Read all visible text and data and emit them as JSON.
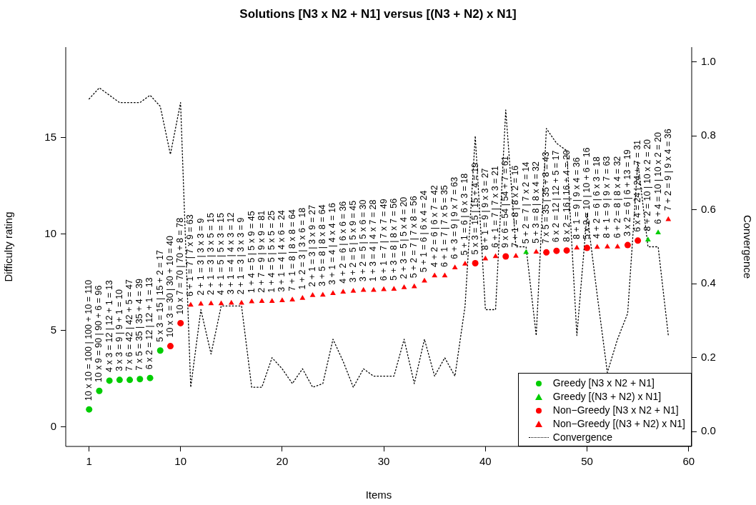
{
  "chart_data": {
    "type": "scatter",
    "title": "Solutions [N3 x N2 + N1] versus [(N3 + N2) x N1]",
    "xlabel": "Items",
    "ylabel": "Difficulty rating",
    "y2label": "Convergence",
    "x": [
      1,
      2,
      3,
      4,
      5,
      6,
      7,
      8,
      9,
      10,
      11,
      12,
      13,
      14,
      15,
      16,
      17,
      18,
      19,
      20,
      21,
      22,
      23,
      24,
      25,
      26,
      27,
      28,
      29,
      30,
      31,
      32,
      33,
      34,
      35,
      36,
      37,
      38,
      39,
      40,
      41,
      42,
      43,
      44,
      45,
      46,
      47,
      48,
      49,
      50,
      51,
      52,
      53,
      54,
      55,
      56,
      57,
      58
    ],
    "series": [
      {
        "name": "Greedy [N3 x N2 + N1]",
        "color": "#00cd00",
        "marker": "circle",
        "x": [
          1,
          2,
          3,
          4,
          5,
          6,
          7,
          8
        ],
        "values": [
          0.92,
          1.88,
          2.41,
          2.45,
          2.45,
          2.49,
          2.55,
          3.97
        ]
      },
      {
        "name": "Greedy [(N3 + N2) x N1]",
        "color": "#00cd00",
        "marker": "triangle",
        "x": [
          44,
          56,
          57
        ],
        "values": [
          9.06,
          9.71,
          10.08
        ]
      },
      {
        "name": "Non−Greedy [N3 x N2 + N1]",
        "color": "#ff0000",
        "marker": "circle",
        "x": [
          9,
          10,
          39,
          42,
          46,
          47,
          48,
          50,
          54,
          55
        ],
        "values": [
          4.2,
          5.39,
          8.5,
          8.85,
          9.06,
          9.14,
          9.16,
          9.29,
          9.44,
          9.67
        ]
      },
      {
        "name": "Non−Greedy [(N3 + N2) x N1]",
        "color": "#ff0000",
        "marker": "triangle",
        "x": [
          11,
          12,
          13,
          14,
          15,
          16,
          17,
          18,
          19,
          20,
          21,
          22,
          23,
          24,
          25,
          26,
          27,
          28,
          29,
          30,
          31,
          32,
          33,
          34,
          35,
          36,
          37,
          38,
          40,
          41,
          43,
          45,
          49,
          51,
          52,
          53,
          58
        ],
        "values": [
          6.33,
          6.39,
          6.41,
          6.41,
          6.43,
          6.43,
          6.51,
          6.53,
          6.53,
          6.56,
          6.6,
          6.68,
          6.83,
          6.85,
          6.93,
          7.01,
          7.05,
          7.1,
          7.1,
          7.14,
          7.16,
          7.24,
          7.29,
          7.58,
          7.85,
          7.85,
          8.27,
          8.46,
          8.73,
          8.85,
          8.87,
          9.08,
          9.29,
          9.33,
          9.35,
          9.35,
          10.77
        ]
      },
      {
        "name": "Convergence",
        "type": "line",
        "axis": "y2",
        "color": "#000000",
        "marker": "none",
        "line_style": "dotted",
        "values": [
          0.9,
          0.93,
          0.91,
          0.89,
          0.89,
          0.89,
          0.91,
          0.88,
          0.75,
          0.89,
          0.12,
          0.33,
          0.21,
          0.34,
          0.34,
          0.34,
          0.12,
          0.12,
          0.2,
          0.17,
          0.13,
          0.17,
          0.12,
          0.13,
          0.25,
          0.19,
          0.12,
          0.17,
          0.15,
          0.15,
          0.15,
          0.25,
          0.13,
          0.25,
          0.15,
          0.2,
          0.15,
          0.34,
          0.8,
          0.33,
          0.33,
          0.87,
          0.5,
          0.5,
          0.26,
          0.82,
          0.78,
          0.76,
          0.26,
          0.59,
          0.37,
          0.16,
          0.25,
          0.32,
          0.73,
          0.5,
          0.5,
          0.26
        ]
      }
    ],
    "xlim": [
      -1.3,
      60.3
    ],
    "xticks": [
      1,
      10,
      20,
      30,
      40,
      50,
      60
    ],
    "ylim": [
      -1,
      19.7
    ],
    "yticks": [
      0,
      5,
      10,
      15
    ],
    "y2lim": [
      -0.04,
      1.04
    ],
    "y2ticks": [
      {
        "value": 0,
        "label": "0.0"
      },
      {
        "value": 0.2,
        "label": "0.2"
      },
      {
        "value": 0.4,
        "label": "0.4"
      },
      {
        "value": 0.6,
        "label": "0.6"
      },
      {
        "value": 0.8,
        "label": "0.8"
      },
      {
        "value": 1,
        "label": "1.0"
      }
    ],
    "grid": false,
    "legend": "bottom right",
    "annotations": [
      {
        "text": "10 x 10 = 100 | 100 + 10 = 110",
        "x": 1,
        "y": 0.92
      },
      {
        "text": "10 x 9 = 90 | 90 + 6 = 96",
        "x": 2,
        "y": 1.88
      },
      {
        "text": "4 x 3 = 12 | 12 + 1 = 13",
        "x": 3,
        "y": 2.41
      },
      {
        "text": "3 x 3 = 9 | 9 + 1 = 10",
        "x": 4,
        "y": 2.45
      },
      {
        "text": "7 x 6 = 42 | 42 + 5 = 47",
        "x": 5,
        "y": 2.45
      },
      {
        "text": "7 x 5 = 35 | 35 + 4 = 39",
        "x": 6,
        "y": 2.49
      },
      {
        "text": "6 x 2 = 12 | 12 + 1 = 13",
        "x": 7,
        "y": 2.55
      },
      {
        "text": "5 x 3 = 15 | 15 + 2 = 17",
        "x": 8,
        "y": 3.97
      },
      {
        "text": "10 x 3 = 30 | 30 + 10 = 40",
        "x": 9,
        "y": 4.2
      },
      {
        "text": "10 x 7 = 70 | 70 + 8 = 78",
        "x": 10,
        "y": 5.39
      },
      {
        "text": "6 + 1 = 7 | 7 x 9 = 63",
        "x": 11,
        "y": 6.33
      },
      {
        "text": "2 + 1 = 3 | 3 x 3 = 9",
        "x": 12,
        "y": 6.39
      },
      {
        "text": "2 + 1 = 3 | 3 x 5 = 15",
        "x": 13,
        "y": 6.41
      },
      {
        "text": "4 + 1 = 5 | 5 x 3 = 15",
        "x": 14,
        "y": 6.41
      },
      {
        "text": "3 + 1 = 4 | 4 x 3 = 12",
        "x": 15,
        "y": 6.43
      },
      {
        "text": "2 + 1 = 3 | 3 x 3 = 9",
        "x": 16,
        "y": 6.43
      },
      {
        "text": "1 + 4 = 5 | 5 x 9 = 45",
        "x": 17,
        "y": 6.51
      },
      {
        "text": "2 + 7 = 9 | 9 x 9 = 81",
        "x": 18,
        "y": 6.53
      },
      {
        "text": "1 + 4 = 5 | 5 x 5 = 25",
        "x": 19,
        "y": 6.53
      },
      {
        "text": "3 + 1 = 4 | 4 x 6 = 24",
        "x": 20,
        "y": 6.56
      },
      {
        "text": "7 + 1 = 8 | 8 x 8 = 64",
        "x": 21,
        "y": 6.6
      },
      {
        "text": "1 + 2 = 3 | 3 x 6 = 18",
        "x": 22,
        "y": 6.68
      },
      {
        "text": "2 + 1 = 3 | 3 x 9 = 27",
        "x": 23,
        "y": 6.83
      },
      {
        "text": "3 + 5 = 8 | 8 x 8 = 64",
        "x": 24,
        "y": 6.85
      },
      {
        "text": "3 + 1 = 4 | 4 x 4 = 16",
        "x": 25,
        "y": 6.93
      },
      {
        "text": "4 + 2 = 6 | 6 x 6 = 36",
        "x": 26,
        "y": 7.01
      },
      {
        "text": "3 + 2 = 5 | 5 x 9 = 45",
        "x": 27,
        "y": 7.05
      },
      {
        "text": "3 + 2 = 5 | 5 x 6 = 30",
        "x": 28,
        "y": 7.1
      },
      {
        "text": "1 + 3 = 4 | 4 x 7 = 28",
        "x": 29,
        "y": 7.1
      },
      {
        "text": "6 + 1 = 7 | 7 x 7 = 49",
        "x": 30,
        "y": 7.14
      },
      {
        "text": "5 + 3 = 8 | 8 x 7 = 56",
        "x": 31,
        "y": 7.16
      },
      {
        "text": "2 + 3 = 5 | 5 x 4 = 20",
        "x": 32,
        "y": 7.24
      },
      {
        "text": "5 + 2 = 7 | 7 x 8 = 56",
        "x": 33,
        "y": 7.29
      },
      {
        "text": "5 + 1 = 6 | 6 x 4 = 24",
        "x": 34,
        "y": 7.58
      },
      {
        "text": "4 + 2 = 6 | 6 x 7 = 42",
        "x": 35,
        "y": 7.85
      },
      {
        "text": "6 + 1 = 7 | 7 x 5 = 35",
        "x": 36,
        "y": 7.85
      },
      {
        "text": "6 + 3 = 9 | 9 x 7 = 63",
        "x": 37,
        "y": 8.27
      },
      {
        "text": "5 + 1 = 6 | 6 x 3 = 18",
        "x": 38,
        "y": 8.46
      },
      {
        "text": "5 x 3 = 15 | 15 + 4 = 19",
        "x": 39,
        "y": 8.5
      },
      {
        "text": "8 + 1 = 9 | 9 x 3 = 27",
        "x": 40,
        "y": 8.73
      },
      {
        "text": "6 + 1 = 7 | 7 x 3 = 21",
        "x": 41,
        "y": 8.85
      },
      {
        "text": "9 x 6 = 54 | 54 + 7 = 61",
        "x": 42,
        "y": 8.85
      },
      {
        "text": "7 + 1 = 8 | 8 x 2 = 16",
        "x": 43,
        "y": 8.87
      },
      {
        "text": "5 + 2 = 7 | 7 x 2 = 14",
        "x": 44,
        "y": 9.06
      },
      {
        "text": "5 + 3 = 8 | 8 x 4 = 32",
        "x": 45,
        "y": 9.08
      },
      {
        "text": "7 x 5 = 35 | 35 + 8 = 43",
        "x": 46,
        "y": 9.06
      },
      {
        "text": "6 x 2 = 12 | 12 + 5 = 17",
        "x": 47,
        "y": 9.14
      },
      {
        "text": "8 x 2 = 16 | 16 + 4 = 20",
        "x": 48,
        "y": 9.16
      },
      {
        "text": "8 + 1 = 9 | 9 x 4 = 36",
        "x": 49,
        "y": 9.29
      },
      {
        "text": "5 x 2 = 10 | 10 + 6 = 16",
        "x": 50,
        "y": 9.29
      },
      {
        "text": "4 + 2 = 6 | 6 x 3 = 18",
        "x": 51,
        "y": 9.33
      },
      {
        "text": "8 + 1 = 9 | 9 x 7 = 63",
        "x": 52,
        "y": 9.35
      },
      {
        "text": "6 + 2 = 8 | 8 x 4 = 32",
        "x": 53,
        "y": 9.35
      },
      {
        "text": "3 x 2 = 6 | 6 + 13 = 19",
        "x": 54,
        "y": 9.44
      },
      {
        "text": "6 x 4 = 24 | 24 + 7 = 31",
        "x": 55,
        "y": 9.67
      },
      {
        "text": "8 + 2 = 10 | 10 x 2 = 20",
        "x": 56,
        "y": 9.71
      },
      {
        "text": "6 + 4 = 10 | 10 x 2 = 20",
        "x": 57,
        "y": 10.08
      },
      {
        "text": "7 + 2 = 9 | 9 x 4 = 36",
        "x": 58,
        "y": 10.77
      }
    ]
  }
}
